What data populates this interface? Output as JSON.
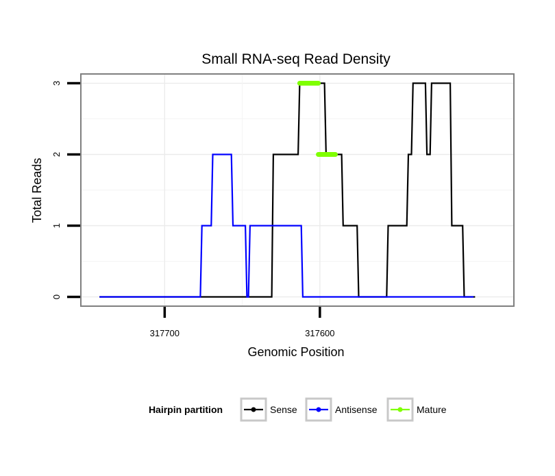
{
  "chart_data": {
    "type": "line",
    "title": "Small RNA-seq Read Density",
    "xlabel": "Genomic Position",
    "ylabel": "Total Reads",
    "x_reversed": true,
    "xlim": [
      317754,
      317475
    ],
    "ylim": [
      -0.13,
      3.13
    ],
    "x_ticks": [
      317700,
      317600
    ],
    "x_tick_labels": [
      "317700",
      "317600"
    ],
    "y_ticks": [
      0,
      1,
      2,
      3
    ],
    "y_tick_labels": [
      "0",
      "1",
      "2",
      "3"
    ],
    "grid": true,
    "legend": {
      "title": "Hairpin partition",
      "position": "bottom",
      "entries": [
        "Sense",
        "Antisense",
        "Mature"
      ]
    },
    "series": [
      {
        "name": "Sense",
        "color": "#000000",
        "x": [
          317742,
          317631,
          317630,
          317614,
          317613,
          317597,
          317596,
          317586,
          317585,
          317576,
          317575,
          317557,
          317556,
          317544,
          317543,
          317541,
          317540,
          317532,
          317531,
          317529,
          317528,
          317516,
          317515,
          317508,
          317507,
          317500
        ],
        "y": [
          0,
          0,
          2,
          2,
          3,
          3,
          2,
          2,
          1,
          1,
          0,
          0,
          1,
          1,
          2,
          2,
          3,
          3,
          2,
          2,
          3,
          3,
          1,
          1,
          0,
          0
        ]
      },
      {
        "name": "Antisense",
        "color": "#0000ff",
        "x": [
          317742,
          317677,
          317676,
          317670,
          317669,
          317657,
          317656,
          317648,
          317647,
          317646,
          317645,
          317630,
          317629,
          317628,
          317627,
          317612,
          317611,
          317501
        ],
        "y": [
          0,
          0,
          1,
          1,
          2,
          2,
          1,
          1,
          0,
          0,
          1,
          1,
          1,
          1,
          1,
          1,
          0,
          0
        ]
      },
      {
        "name": "Mature",
        "color": "#7fff00",
        "segments": [
          {
            "x": [
              317613,
              317601
            ],
            "y": [
              3,
              3
            ]
          },
          {
            "x": [
              317601,
              317590
            ],
            "y": [
              2,
              2
            ]
          }
        ]
      }
    ]
  }
}
